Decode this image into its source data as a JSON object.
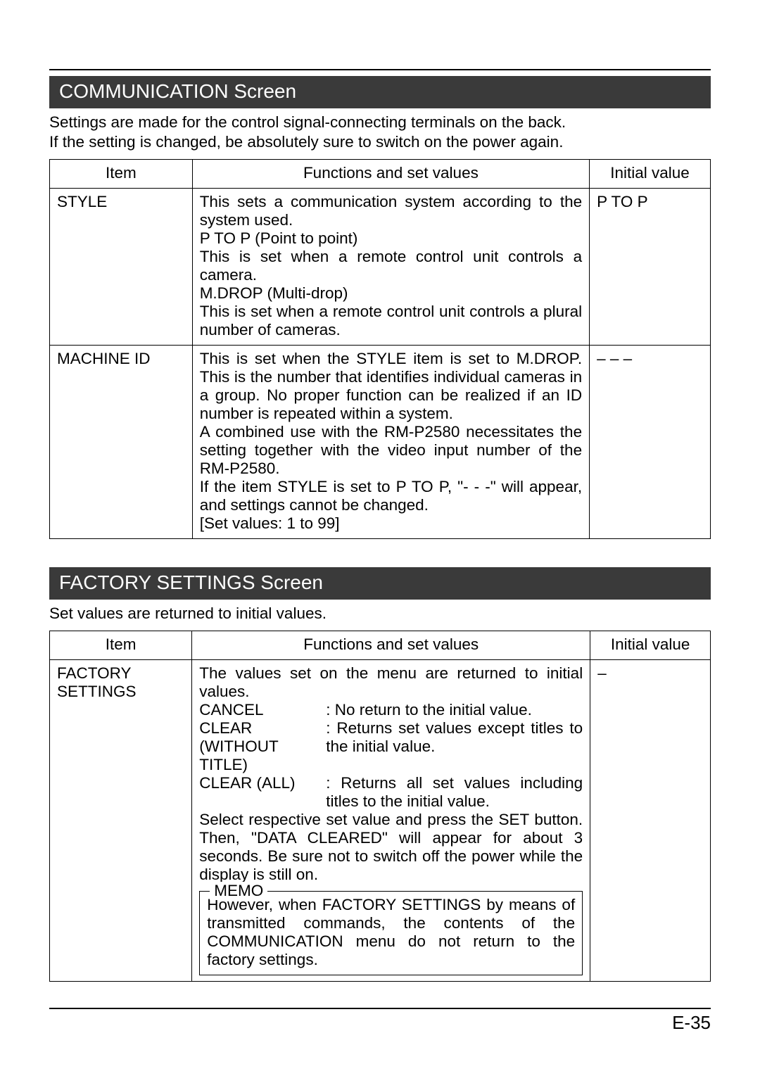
{
  "communication": {
    "header": "COMMUNICATION Screen",
    "intro_line1": "Settings are made for the control signal-connecting terminals on the back.",
    "intro_line2": "If the setting is changed, be absolutely sure to switch on the power again.",
    "columns": {
      "item": "Item",
      "func": "Functions and set values",
      "init": "Initial value"
    },
    "rows": {
      "style": {
        "item": "STYLE",
        "func_p1": "This sets a communication system according to the system used.",
        "func_p2": "P TO P (Point to point)",
        "func_p3": "This is set when a remote control unit controls a camera.",
        "func_p4": "M.DROP (Multi-drop)",
        "func_p5": "This is set when a remote control unit controls a plural number of cameras.",
        "init": "P TO P"
      },
      "machine": {
        "item": "MACHINE ID",
        "func_p1": "This is set when the STYLE item is set to M.DROP.  This is the number that identifies individual cameras in a group. No proper function can be realized if an ID number is repeated within a system.",
        "func_p2": "A combined use with the RM-P2580 necessitates the setting together with the video input number of the RM-P2580.",
        "func_p3": "If the item STYLE is set to P TO P, \"- - -\" will appear, and settings cannot be changed.",
        "func_p4": "[Set values: 1 to 99]",
        "init": "– – –"
      }
    }
  },
  "factory": {
    "header": "FACTORY SETTINGS Screen",
    "intro": "Set values are returned to initial values.",
    "columns": {
      "item": "Item",
      "func": "Functions and set values",
      "init": "Initial value"
    },
    "rows": {
      "fs": {
        "item": "FACTORY SETTINGS",
        "lead": "The values set on the menu are returned to initial values.",
        "cancel_label": "CANCEL",
        "cancel_text": ": No return to the initial value.",
        "clear_label1": "CLEAR",
        "clear_label2": "(WITHOUT TITLE)",
        "clear_text": ": Returns set values except titles to the initial value.",
        "clearall_label": "CLEAR (ALL)",
        "clearall_text": ": Returns all set values including titles to the initial value.",
        "note": "Select respective set value and press the SET button. Then, \"DATA CLEARED\" will appear for about 3 seconds.  Be sure not to switch off the power while the display is still on.",
        "memo_label": "MEMO",
        "memo_text": "However, when FACTORY SETTINGS by means of transmitted commands, the contents of the COMMUNICATION menu do not return to the factory settings.",
        "init": "–"
      }
    }
  },
  "page_number": "E-35"
}
